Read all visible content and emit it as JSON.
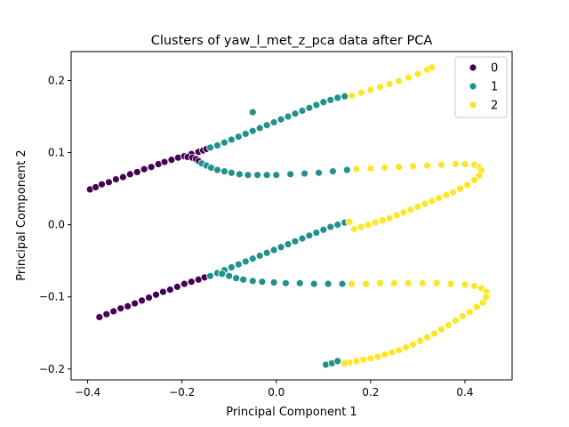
{
  "chart_data": {
    "type": "scatter",
    "title": "Clusters of yaw_l_met_z_pca data after PCA",
    "xlabel": "Principal Component 1",
    "ylabel": "Principal Component 2",
    "xlim": [
      -0.435,
      0.5
    ],
    "ylim": [
      -0.215,
      0.24
    ],
    "xticks": [
      -0.4,
      -0.2,
      0.0,
      0.2,
      0.4
    ],
    "xtick_labels": [
      "−0.4",
      "−0.2",
      "0.0",
      "0.2",
      "0.4"
    ],
    "yticks": [
      -0.2,
      -0.1,
      0.0,
      0.1,
      0.2
    ],
    "ytick_labels": [
      "−0.2",
      "−0.1",
      "0.0",
      "0.1",
      "0.2"
    ],
    "grid": false,
    "legend_position": "top-right",
    "series": [
      {
        "name": "0",
        "color": "#440154",
        "points": [
          [
            -0.395,
            0.049
          ],
          [
            -0.383,
            0.052
          ],
          [
            -0.37,
            0.056
          ],
          [
            -0.355,
            0.059
          ],
          [
            -0.34,
            0.063
          ],
          [
            -0.325,
            0.066
          ],
          [
            -0.31,
            0.07
          ],
          [
            -0.295,
            0.073
          ],
          [
            -0.28,
            0.077
          ],
          [
            -0.265,
            0.08
          ],
          [
            -0.25,
            0.084
          ],
          [
            -0.237,
            0.087
          ],
          [
            -0.222,
            0.09
          ],
          [
            -0.208,
            0.093
          ],
          [
            -0.195,
            0.095
          ],
          [
            -0.18,
            0.098
          ],
          [
            -0.165,
            0.101
          ],
          [
            -0.155,
            0.103
          ],
          [
            -0.148,
            0.105
          ],
          [
            -0.188,
            0.094
          ],
          [
            -0.178,
            0.093
          ],
          [
            -0.17,
            0.091
          ],
          [
            -0.164,
            0.088
          ],
          [
            -0.375,
            -0.128
          ],
          [
            -0.36,
            -0.124
          ],
          [
            -0.345,
            -0.12
          ],
          [
            -0.33,
            -0.116
          ],
          [
            -0.315,
            -0.113
          ],
          [
            -0.3,
            -0.109
          ],
          [
            -0.285,
            -0.105
          ],
          [
            -0.27,
            -0.101
          ],
          [
            -0.255,
            -0.097
          ],
          [
            -0.24,
            -0.093
          ],
          [
            -0.225,
            -0.09
          ],
          [
            -0.21,
            -0.086
          ],
          [
            -0.195,
            -0.082
          ],
          [
            -0.18,
            -0.079
          ],
          [
            -0.165,
            -0.076
          ],
          [
            -0.152,
            -0.073
          ]
        ]
      },
      {
        "name": "1",
        "color": "#21918c",
        "points": [
          [
            -0.05,
            0.156
          ],
          [
            -0.14,
            0.107
          ],
          [
            -0.125,
            0.11
          ],
          [
            -0.11,
            0.114
          ],
          [
            -0.095,
            0.118
          ],
          [
            -0.08,
            0.122
          ],
          [
            -0.065,
            0.126
          ],
          [
            -0.05,
            0.13
          ],
          [
            -0.035,
            0.134
          ],
          [
            -0.02,
            0.138
          ],
          [
            -0.005,
            0.142
          ],
          [
            0.01,
            0.146
          ],
          [
            0.025,
            0.15
          ],
          [
            0.04,
            0.154
          ],
          [
            0.055,
            0.158
          ],
          [
            0.07,
            0.162
          ],
          [
            0.085,
            0.166
          ],
          [
            0.1,
            0.17
          ],
          [
            0.115,
            0.173
          ],
          [
            0.13,
            0.176
          ],
          [
            0.145,
            0.178
          ],
          [
            -0.158,
            0.085
          ],
          [
            -0.148,
            0.082
          ],
          [
            -0.138,
            0.079
          ],
          [
            -0.125,
            0.076
          ],
          [
            -0.11,
            0.074
          ],
          [
            -0.095,
            0.072
          ],
          [
            -0.078,
            0.07
          ],
          [
            -0.06,
            0.069
          ],
          [
            -0.04,
            0.069
          ],
          [
            -0.02,
            0.069
          ],
          [
            0.0,
            0.069
          ],
          [
            0.03,
            0.07
          ],
          [
            0.06,
            0.071
          ],
          [
            0.09,
            0.072
          ],
          [
            0.12,
            0.074
          ],
          [
            0.15,
            0.076
          ],
          [
            -0.14,
            -0.071
          ],
          [
            -0.125,
            -0.067
          ],
          [
            -0.11,
            -0.063
          ],
          [
            -0.095,
            -0.059
          ],
          [
            -0.08,
            -0.055
          ],
          [
            -0.065,
            -0.051
          ],
          [
            -0.05,
            -0.047
          ],
          [
            -0.035,
            -0.043
          ],
          [
            -0.02,
            -0.039
          ],
          [
            -0.005,
            -0.035
          ],
          [
            0.01,
            -0.031
          ],
          [
            0.025,
            -0.027
          ],
          [
            0.04,
            -0.023
          ],
          [
            0.055,
            -0.019
          ],
          [
            0.07,
            -0.015
          ],
          [
            0.085,
            -0.011
          ],
          [
            0.1,
            -0.007
          ],
          [
            0.115,
            -0.003
          ],
          [
            0.13,
            0.0
          ],
          [
            0.145,
            0.003
          ],
          [
            -0.115,
            -0.068
          ],
          [
            -0.1,
            -0.071
          ],
          [
            -0.085,
            -0.074
          ],
          [
            -0.07,
            -0.076
          ],
          [
            -0.05,
            -0.078
          ],
          [
            -0.03,
            -0.079
          ],
          [
            -0.005,
            -0.08
          ],
          [
            0.02,
            -0.081
          ],
          [
            0.05,
            -0.081
          ],
          [
            0.08,
            -0.082
          ],
          [
            0.11,
            -0.082
          ],
          [
            0.14,
            -0.082
          ],
          [
            0.105,
            -0.194
          ],
          [
            0.118,
            -0.192
          ],
          [
            0.13,
            -0.189
          ]
        ]
      },
      {
        "name": "2",
        "color": "#fde725",
        "points": [
          [
            0.16,
            0.179
          ],
          [
            0.18,
            0.183
          ],
          [
            0.2,
            0.187
          ],
          [
            0.22,
            0.191
          ],
          [
            0.24,
            0.195
          ],
          [
            0.26,
            0.199
          ],
          [
            0.28,
            0.204
          ],
          [
            0.3,
            0.209
          ],
          [
            0.32,
            0.215
          ],
          [
            0.33,
            0.218
          ],
          [
            0.17,
            0.077
          ],
          [
            0.2,
            0.078
          ],
          [
            0.23,
            0.079
          ],
          [
            0.26,
            0.08
          ],
          [
            0.29,
            0.081
          ],
          [
            0.32,
            0.082
          ],
          [
            0.35,
            0.083
          ],
          [
            0.38,
            0.084
          ],
          [
            0.4,
            0.084
          ],
          [
            0.42,
            0.083
          ],
          [
            0.43,
            0.08
          ],
          [
            0.435,
            0.075
          ],
          [
            0.43,
            0.068
          ],
          [
            0.42,
            0.062
          ],
          [
            0.405,
            0.055
          ],
          [
            0.39,
            0.05
          ],
          [
            0.375,
            0.045
          ],
          [
            0.36,
            0.041
          ],
          [
            0.345,
            0.037
          ],
          [
            0.33,
            0.033
          ],
          [
            0.315,
            0.029
          ],
          [
            0.3,
            0.025
          ],
          [
            0.285,
            0.021
          ],
          [
            0.27,
            0.017
          ],
          [
            0.255,
            0.013
          ],
          [
            0.24,
            0.009
          ],
          [
            0.225,
            0.006
          ],
          [
            0.21,
            0.003
          ],
          [
            0.195,
            0.0
          ],
          [
            0.18,
            -0.003
          ],
          [
            0.165,
            -0.006
          ],
          [
            0.155,
            0.004
          ],
          [
            0.16,
            -0.082
          ],
          [
            0.19,
            -0.082
          ],
          [
            0.22,
            -0.081
          ],
          [
            0.25,
            -0.081
          ],
          [
            0.28,
            -0.081
          ],
          [
            0.31,
            -0.081
          ],
          [
            0.34,
            -0.081
          ],
          [
            0.37,
            -0.082
          ],
          [
            0.4,
            -0.083
          ],
          [
            0.42,
            -0.085
          ],
          [
            0.435,
            -0.088
          ],
          [
            0.445,
            -0.093
          ],
          [
            0.445,
            -0.1
          ],
          [
            0.438,
            -0.108
          ],
          [
            0.425,
            -0.114
          ],
          [
            0.41,
            -0.121
          ],
          [
            0.395,
            -0.127
          ],
          [
            0.38,
            -0.133
          ],
          [
            0.365,
            -0.139
          ],
          [
            0.35,
            -0.145
          ],
          [
            0.335,
            -0.151
          ],
          [
            0.32,
            -0.156
          ],
          [
            0.305,
            -0.161
          ],
          [
            0.29,
            -0.166
          ],
          [
            0.275,
            -0.17
          ],
          [
            0.26,
            -0.174
          ],
          [
            0.245,
            -0.177
          ],
          [
            0.23,
            -0.18
          ],
          [
            0.215,
            -0.183
          ],
          [
            0.2,
            -0.185
          ],
          [
            0.185,
            -0.187
          ],
          [
            0.17,
            -0.189
          ],
          [
            0.155,
            -0.191
          ],
          [
            0.145,
            -0.192
          ]
        ]
      }
    ]
  }
}
